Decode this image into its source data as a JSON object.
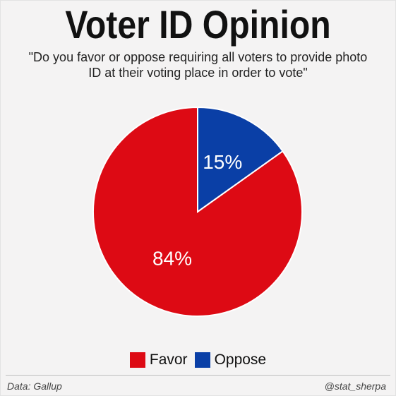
{
  "title": "Voter ID Opinion",
  "subtitle": "\"Do you favor or oppose requiring all voters to provide photo ID at their voting place in order to vote\"",
  "footer": {
    "source": "Data: Gallup",
    "credit": "@stat_sherpa"
  },
  "colors": {
    "favor": "#dd0a14",
    "oppose": "#0a3fa6",
    "slice_border": "#ffffff"
  },
  "chart_data": {
    "type": "pie",
    "categories": [
      "Favor",
      "Oppose"
    ],
    "values": [
      84,
      15
    ],
    "labels": [
      "84%",
      "15%"
    ],
    "legend_position": "bottom"
  }
}
